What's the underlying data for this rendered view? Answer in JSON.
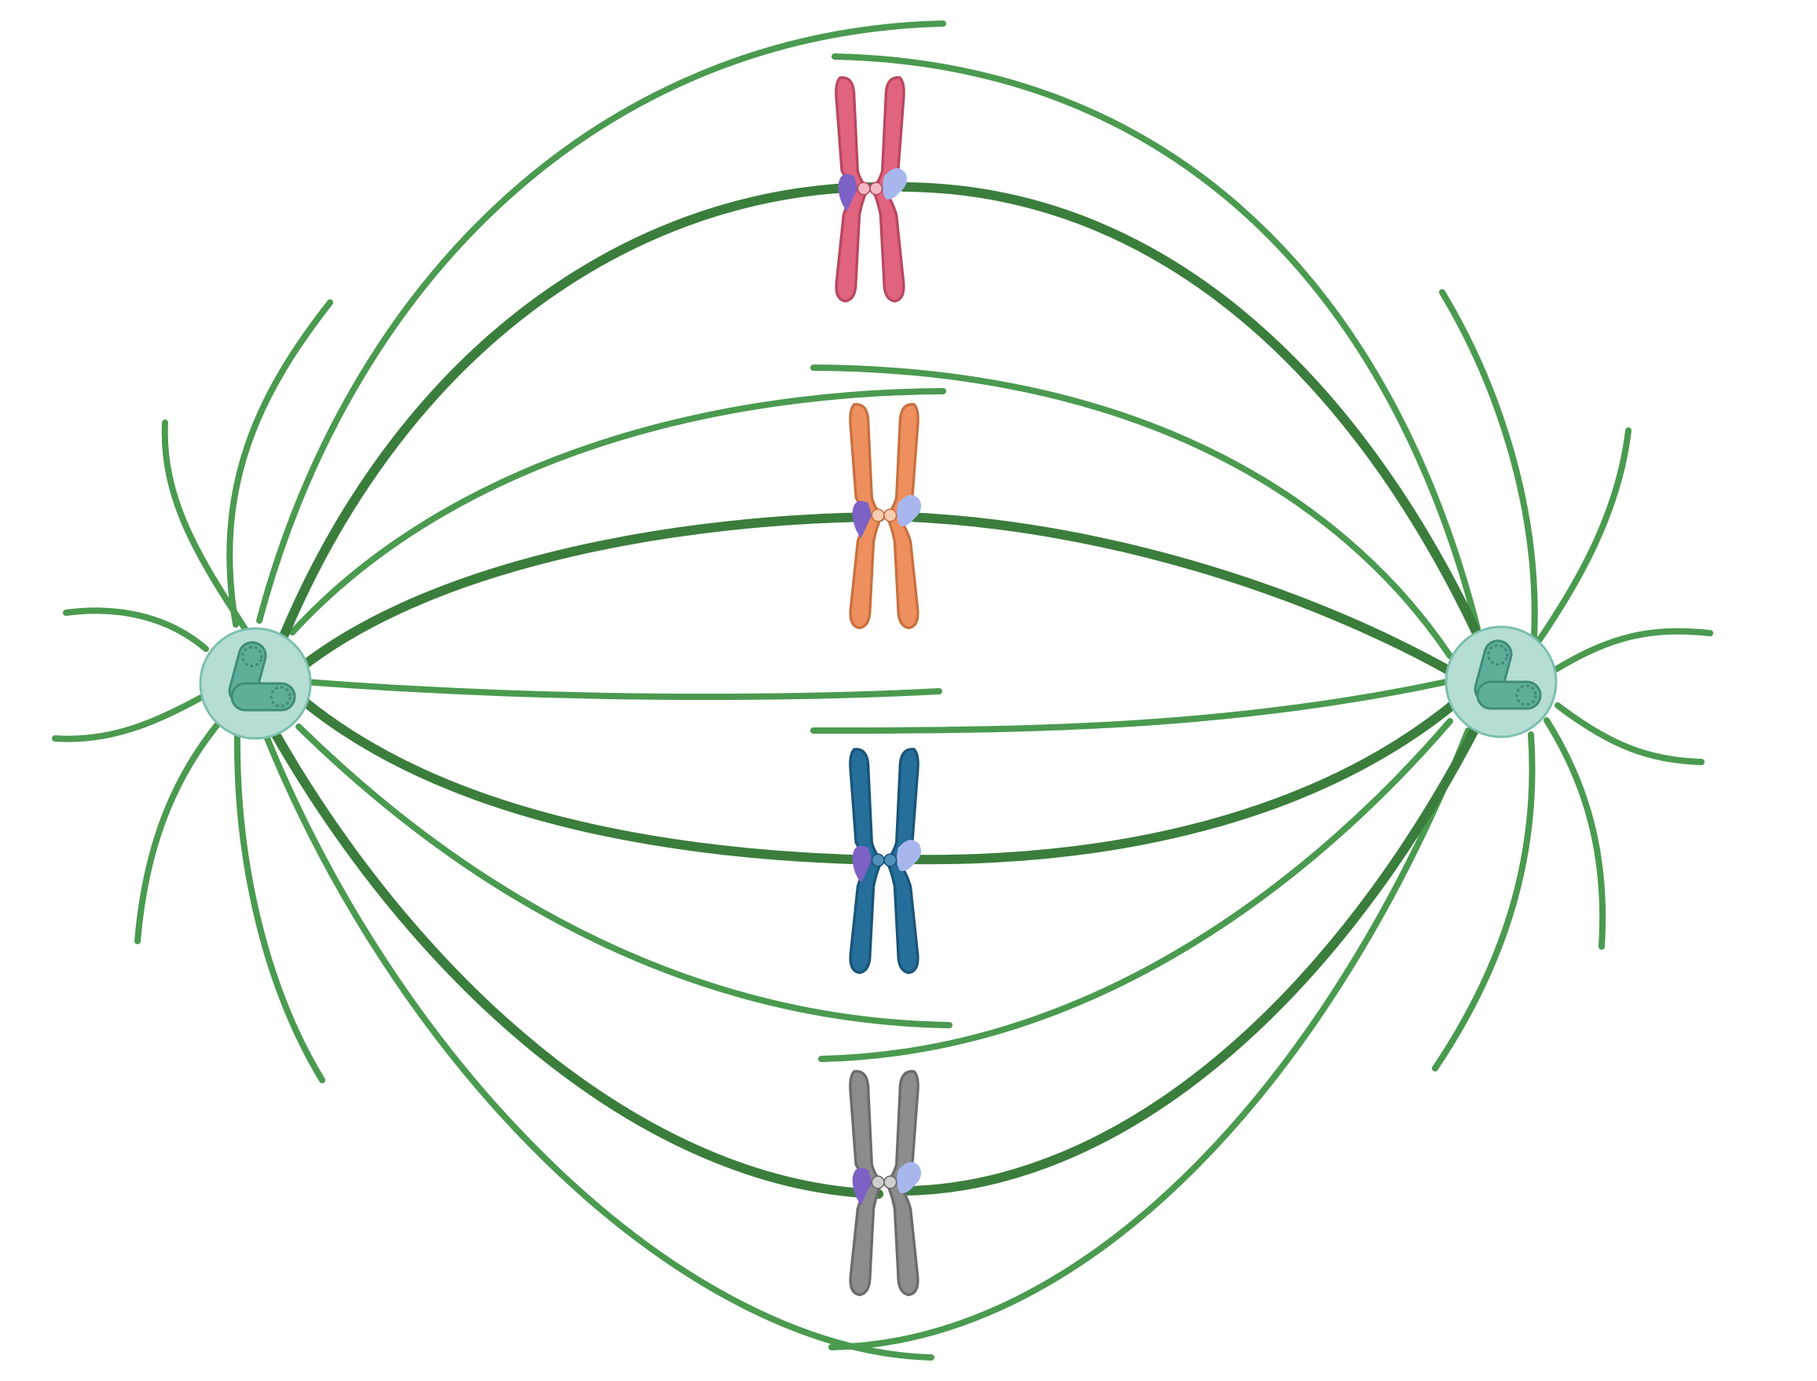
{
  "diagram": {
    "subject": "metaphase-spindle",
    "colors": {
      "background": "#ffffff",
      "thin_fiber": "#4a9a4f",
      "thick_fiber": "#3b7d3c",
      "centrosome_fill": "#b5ddd3",
      "centrosome_stroke": "#7cbfae",
      "centriole_fill": "#5fae99",
      "centriole_stroke": "#3f8c78",
      "kinetochore_left": "#7d62c6",
      "kinetochore_right": "#a7b7ee"
    },
    "centrosomes": [
      {
        "id": "left-pole",
        "icon": "centrosome-icon"
      },
      {
        "id": "right-pole",
        "icon": "centrosome-icon"
      }
    ],
    "chromosomes": [
      {
        "id": "red",
        "color": "#e0637f",
        "dark": "#b9475f",
        "centromere": "#f3b8c4"
      },
      {
        "id": "orange",
        "color": "#ee8f5e",
        "dark": "#c9703f",
        "centromere": "#f8ccb3"
      },
      {
        "id": "blue",
        "color": "#256f9a",
        "dark": "#1a5478",
        "centromere": "#4f90b8"
      },
      {
        "id": "gray",
        "color": "#8c8c8c",
        "dark": "#6b6b6b",
        "centromere": "#cfcfcf"
      }
    ]
  }
}
